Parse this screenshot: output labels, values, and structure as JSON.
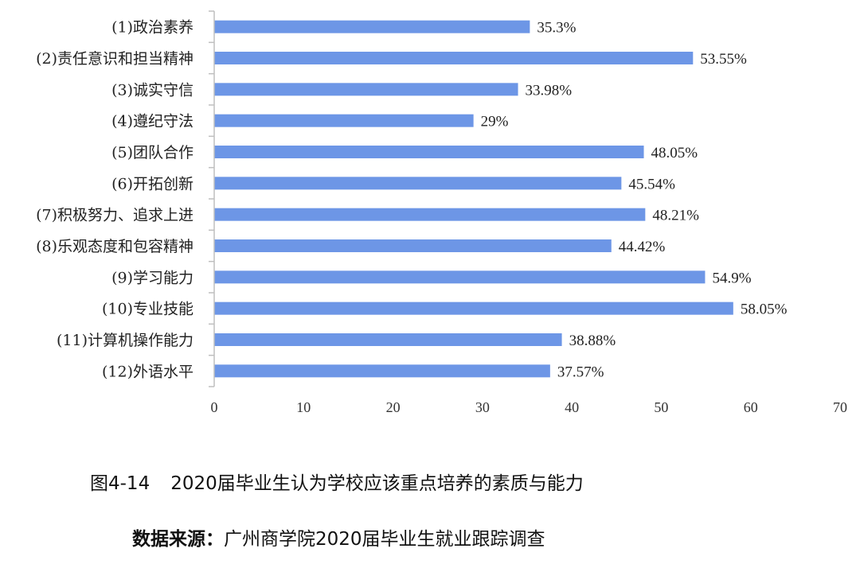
{
  "chart_data": {
    "type": "bar",
    "orientation": "horizontal",
    "categories": [
      "(1)政治素养",
      "(2)责任意识和担当精神",
      "(3)诚实守信",
      "(4)遵纪守法",
      "(5)团队合作",
      "(6)开拓创新",
      "(7)积极努力、追求上进",
      "(8)乐观态度和包容精神",
      "(9)学习能力",
      "(10)专业技能",
      "(11)计算机操作能力",
      "(12)外语水平"
    ],
    "values": [
      35.3,
      53.55,
      33.98,
      29,
      48.05,
      45.54,
      48.21,
      44.42,
      54.9,
      58.05,
      38.88,
      37.57
    ],
    "value_labels": [
      "35.3%",
      "53.55%",
      "33.98%",
      "29%",
      "48.05%",
      "45.54%",
      "48.21%",
      "44.42%",
      "54.9%",
      "58.05%",
      "38.88%",
      "37.57%"
    ],
    "xlim": [
      0,
      70
    ],
    "xticks": [
      "0",
      "10",
      "20",
      "30",
      "40",
      "50",
      "60",
      "70"
    ],
    "grid": false,
    "legend": "none",
    "bar_color": "#6d96e6",
    "axis_color": "#bfbfbf"
  },
  "caption": {
    "figure_number": "图4-14",
    "title": "2020届毕业生认为学校应该重点培养的素质与能力",
    "source_label": "数据来源：",
    "source_text": "广州商学院2020届毕业生就业跟踪调查"
  }
}
